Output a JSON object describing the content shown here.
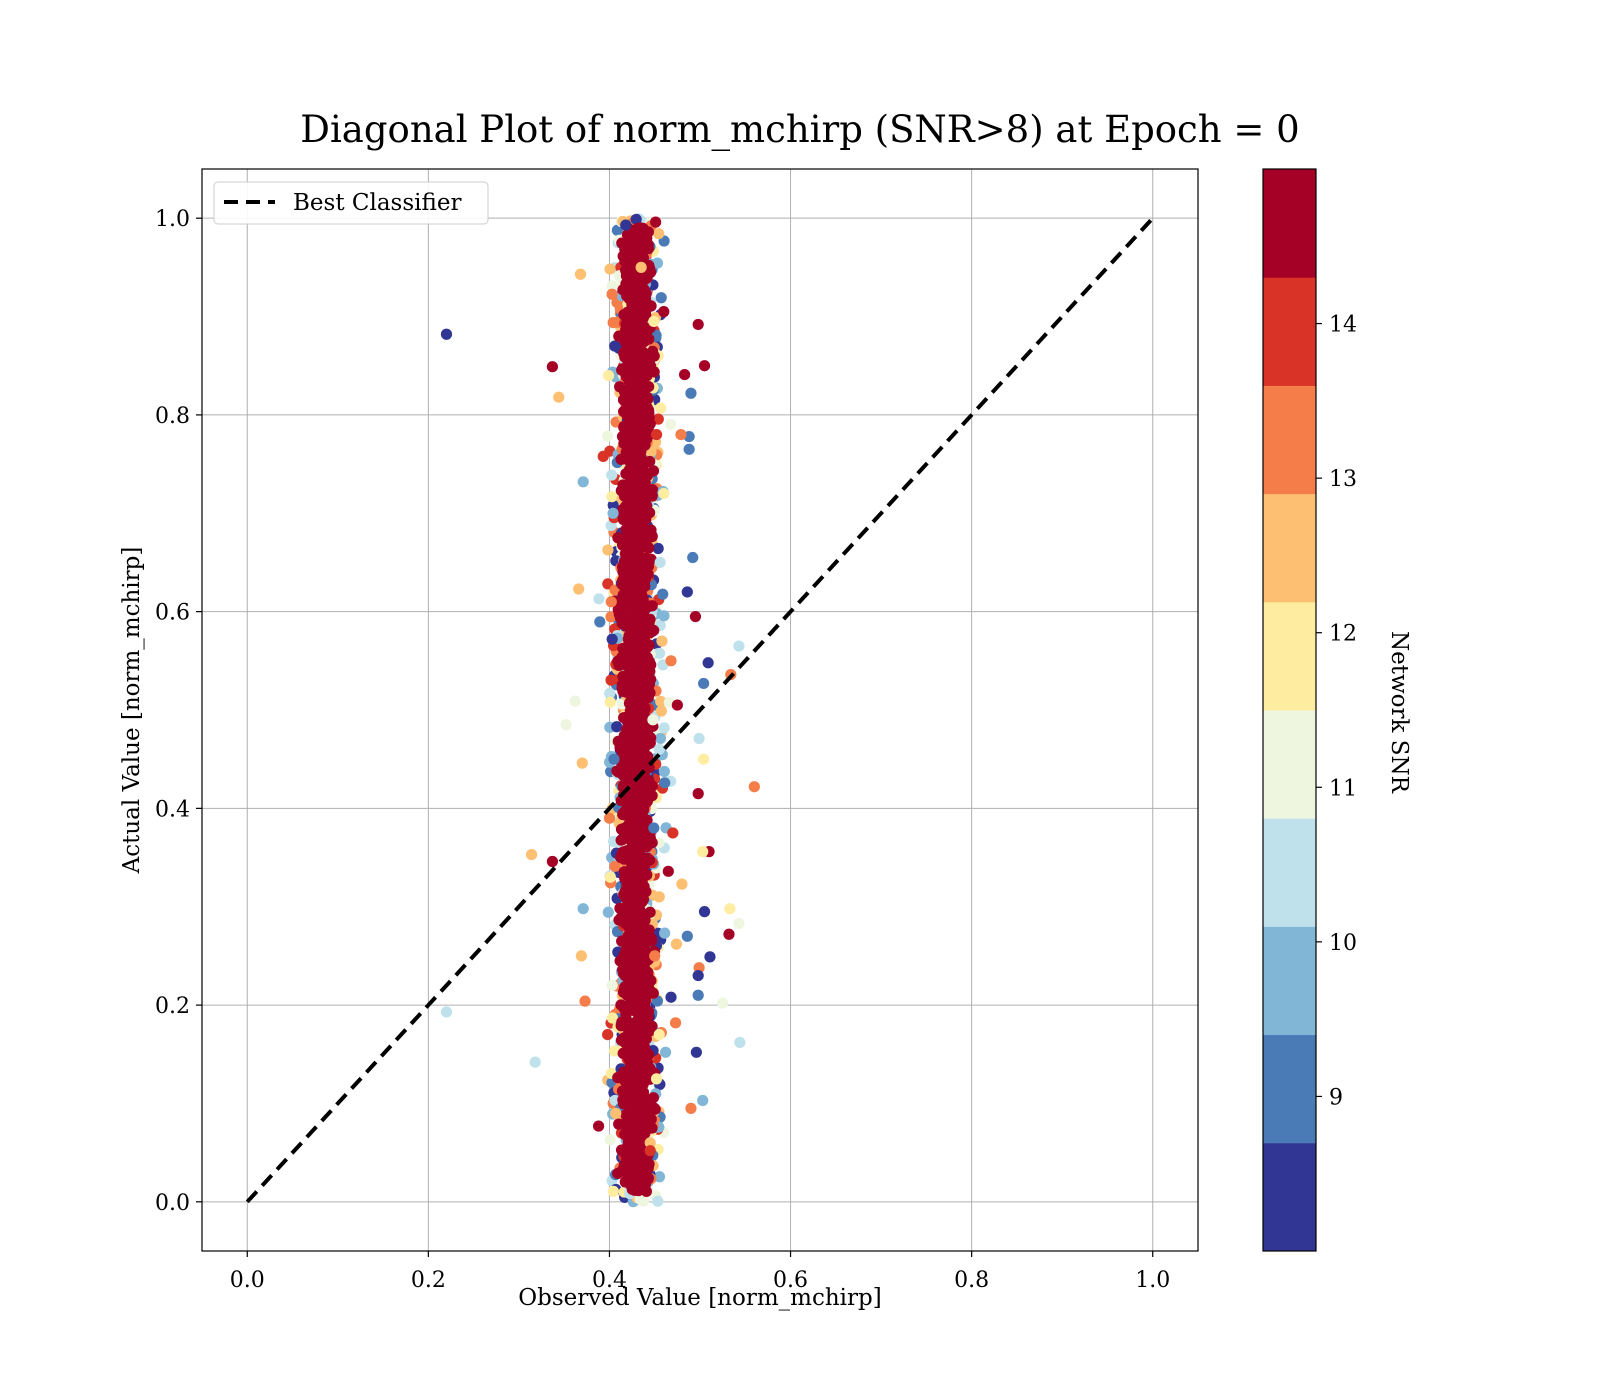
{
  "chart_data": {
    "type": "scatter",
    "title": "Diagonal Plot of norm_mchirp (SNR>8) at Epoch = 0",
    "xlabel": "Observed Value [norm_mchirp]",
    "ylabel": "Actual Value [norm_mchirp]",
    "xlim": [
      -0.05,
      1.05
    ],
    "ylim": [
      -0.05,
      1.05
    ],
    "xticks": [
      "0.0",
      "0.2",
      "0.4",
      "0.6",
      "0.8",
      "1.0"
    ],
    "yticks": [
      "0.0",
      "0.2",
      "0.4",
      "0.6",
      "0.8",
      "1.0"
    ],
    "grid": true,
    "legend": {
      "position": "top-left",
      "entries": [
        "Best Classifier"
      ]
    },
    "reference_line": {
      "name": "Best Classifier",
      "style": "dashed",
      "color": "#000000",
      "x": [
        0.0,
        1.0
      ],
      "y": [
        0.0,
        1.0
      ]
    },
    "colorbar": {
      "label": "Network SNR",
      "range": [
        8,
        15
      ],
      "ticks": [
        "9",
        "10",
        "11",
        "12",
        "13",
        "14"
      ],
      "tick_values": [
        9,
        10,
        11,
        12,
        13,
        14
      ],
      "bins": [
        {
          "from": 8.0,
          "to": 8.7,
          "color": "#313695"
        },
        {
          "from": 8.7,
          "to": 9.4,
          "color": "#4a7bb7"
        },
        {
          "from": 9.4,
          "to": 10.1,
          "color": "#82b6d7"
        },
        {
          "from": 10.1,
          "to": 10.8,
          "color": "#bfe1ec"
        },
        {
          "from": 10.8,
          "to": 11.5,
          "color": "#eef6e0"
        },
        {
          "from": 11.5,
          "to": 12.2,
          "color": "#feeda1"
        },
        {
          "from": 12.2,
          "to": 12.9,
          "color": "#fdbf71"
        },
        {
          "from": 12.9,
          "to": 13.6,
          "color": "#f57d4a"
        },
        {
          "from": 13.6,
          "to": 14.3,
          "color": "#d93328"
        },
        {
          "from": 14.3,
          "to": 15.0,
          "color": "#a50026"
        }
      ]
    },
    "series": [
      {
        "points": [
          [
            0.22,
            0.882,
            8.3
          ],
          [
            0.337,
            0.849,
            14.6
          ],
          [
            0.344,
            0.818,
            12.6
          ],
          [
            0.368,
            0.943,
            12.5
          ],
          [
            0.371,
            0.732,
            9.8
          ],
          [
            0.366,
            0.623,
            12.6
          ],
          [
            0.362,
            0.509,
            11.2
          ],
          [
            0.352,
            0.485,
            11.4
          ],
          [
            0.37,
            0.446,
            12.8
          ],
          [
            0.314,
            0.353,
            12.6
          ],
          [
            0.337,
            0.346,
            14.5
          ],
          [
            0.371,
            0.298,
            9.6
          ],
          [
            0.369,
            0.25,
            12.6
          ],
          [
            0.373,
            0.204,
            13.0
          ],
          [
            0.22,
            0.193,
            10.4
          ],
          [
            0.318,
            0.142,
            10.3
          ],
          [
            0.388,
            0.077,
            14.6
          ],
          [
            0.543,
            0.565,
            10.4
          ],
          [
            0.534,
            0.536,
            13.0
          ],
          [
            0.509,
            0.548,
            8.4
          ],
          [
            0.504,
            0.527,
            9.1
          ],
          [
            0.499,
            0.471,
            10.3
          ],
          [
            0.504,
            0.45,
            12.0
          ],
          [
            0.56,
            0.422,
            13.3
          ],
          [
            0.498,
            0.415,
            14.5
          ],
          [
            0.51,
            0.356,
            14.5
          ],
          [
            0.503,
            0.356,
            11.9
          ],
          [
            0.505,
            0.295,
            8.7
          ],
          [
            0.533,
            0.298,
            11.9
          ],
          [
            0.543,
            0.283,
            11.3
          ],
          [
            0.532,
            0.272,
            14.5
          ],
          [
            0.511,
            0.249,
            8.5
          ],
          [
            0.499,
            0.238,
            13.2
          ],
          [
            0.498,
            0.23,
            8.6
          ],
          [
            0.498,
            0.21,
            8.8
          ],
          [
            0.525,
            0.202,
            11.2
          ],
          [
            0.544,
            0.162,
            10.2
          ],
          [
            0.496,
            0.152,
            8.4
          ],
          [
            0.503,
            0.103,
            9.7
          ],
          [
            0.49,
            0.095,
            13.1
          ],
          [
            0.498,
            0.892,
            14.5
          ],
          [
            0.505,
            0.85,
            14.6
          ],
          [
            0.483,
            0.841,
            14.6
          ],
          [
            0.49,
            0.822,
            9.1
          ],
          [
            0.488,
            0.778,
            9.4
          ],
          [
            0.488,
            0.765,
            9.1
          ],
          [
            0.479,
            0.78,
            13.1
          ],
          [
            0.492,
            0.655,
            9.0
          ],
          [
            0.486,
            0.62,
            8.4
          ],
          [
            0.495,
            0.595,
            14.5
          ],
          [
            0.468,
            0.55,
            13.6
          ],
          [
            0.475,
            0.505,
            14.5
          ],
          [
            0.461,
            0.426,
            8.9
          ],
          [
            0.465,
            0.336,
            14.5
          ],
          [
            0.48,
            0.323,
            12.3
          ],
          [
            0.47,
            0.375,
            13.7
          ],
          [
            0.486,
            0.27,
            9.2
          ],
          [
            0.474,
            0.262,
            12.8
          ],
          [
            0.468,
            0.208,
            8.5
          ],
          [
            0.473,
            0.182,
            13.4
          ],
          [
            0.462,
            0.152,
            9.7
          ],
          [
            0.451,
            0.996,
            14.4
          ],
          [
            0.443,
            0.986,
            14.6
          ],
          [
            0.418,
            0.993,
            8.5
          ],
          [
            0.435,
            0.95,
            12.4
          ],
          [
            0.449,
            0.895,
            12.2
          ],
          [
            0.46,
            0.905,
            14.6
          ],
          [
            0.452,
            0.78,
            13.7
          ],
          [
            0.46,
            0.72,
            12.1
          ],
          [
            0.456,
            0.65,
            10.2
          ],
          [
            0.458,
            0.57,
            12.3
          ],
          [
            0.448,
            0.49,
            11.3
          ],
          [
            0.455,
            0.46,
            10.4
          ],
          [
            0.449,
            0.38,
            9.2
          ],
          [
            0.455,
            0.31,
            12.8
          ],
          [
            0.45,
            0.25,
            13.3
          ],
          [
            0.455,
            0.17,
            11.6
          ],
          [
            0.452,
            0.125,
            11.7
          ],
          [
            0.445,
            0.06,
            12.3
          ],
          [
            0.445,
            0.052,
            14.1
          ],
          [
            0.403,
            0.572,
            8.5
          ],
          [
            0.405,
            0.45,
            9.4
          ],
          [
            0.4,
            0.39,
            13.3
          ],
          [
            0.399,
            0.84,
            12.1
          ],
          [
            0.404,
            0.7,
            10.0
          ],
          [
            0.402,
            0.61,
            13.0
          ],
          [
            0.401,
            0.33,
            12.2
          ],
          [
            0.403,
            0.22,
            11.5
          ],
          [
            0.407,
            0.09,
            12.7
          ],
          [
            0.398,
            0.17,
            14.2
          ]
        ],
        "dense_core": {
          "x_center": 0.43,
          "x_spread": 0.013,
          "y_range": [
            0.0,
            1.0
          ],
          "dominant_snr": 14.6
        }
      }
    ]
  }
}
